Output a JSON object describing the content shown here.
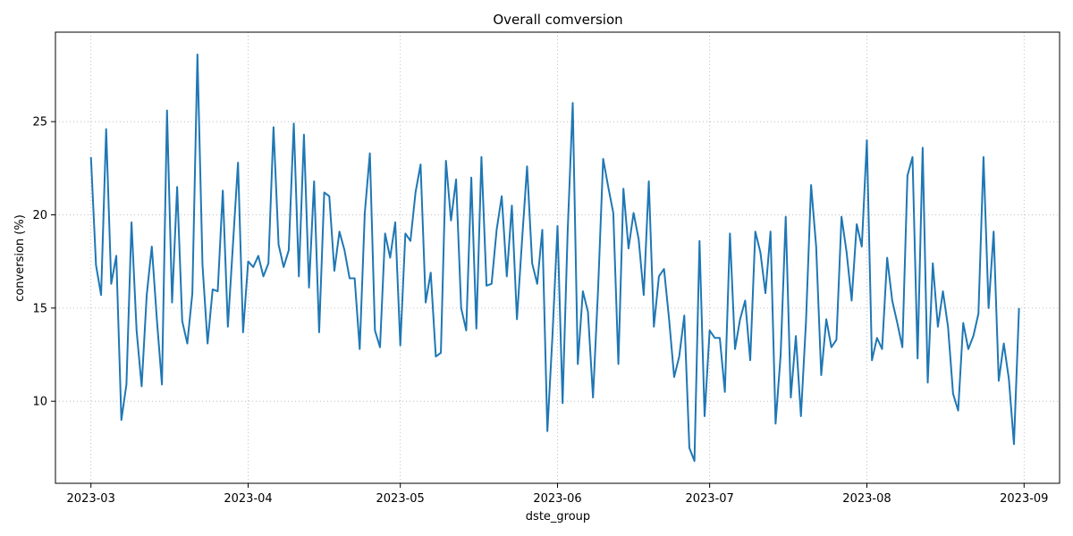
{
  "chart_data": {
    "type": "line",
    "title": "Overall comversion",
    "xlabel": "dste_group",
    "ylabel": "conversion (%)",
    "x_start": "2023-03-01",
    "x_end": "2023-08-31",
    "xlim": [
      "2023-02-22",
      "2023-09-08"
    ],
    "ylim": [
      5.6,
      29.8
    ],
    "xticks": [
      {
        "date": "2023-03-01",
        "label": "2023-03"
      },
      {
        "date": "2023-04-01",
        "label": "2023-04"
      },
      {
        "date": "2023-05-01",
        "label": "2023-05"
      },
      {
        "date": "2023-06-01",
        "label": "2023-06"
      },
      {
        "date": "2023-07-01",
        "label": "2023-07"
      },
      {
        "date": "2023-08-01",
        "label": "2023-08"
      },
      {
        "date": "2023-09-01",
        "label": "2023-09"
      }
    ],
    "yticks": [
      10,
      15,
      20,
      25
    ],
    "grid": true,
    "line_color": "#1f77b4",
    "series": [
      {
        "values": [
          23.1,
          17.3,
          15.7,
          24.6,
          16.3,
          17.8,
          9.0,
          10.9,
          19.6,
          13.8,
          10.8,
          15.7,
          18.3,
          14.4,
          10.9,
          25.6,
          15.3,
          21.5,
          14.3,
          13.1,
          15.8,
          28.6,
          17.3,
          13.1,
          16.0,
          15.9,
          21.3,
          14.0,
          18.4,
          22.8,
          13.7,
          17.5,
          17.2,
          17.8,
          16.7,
          17.4,
          24.7,
          18.4,
          17.2,
          18.1,
          24.9,
          16.7,
          24.3,
          16.1,
          21.8,
          13.7,
          21.2,
          21.0,
          17.0,
          19.1,
          18.1,
          16.6,
          16.6,
          12.8,
          20.1,
          23.3,
          13.8,
          12.9,
          19.0,
          17.7,
          19.6,
          13.0,
          19.0,
          18.6,
          21.2,
          22.7,
          15.3,
          16.9,
          12.4,
          12.6,
          22.9,
          19.7,
          21.9,
          15.0,
          13.8,
          22.0,
          13.9,
          23.1,
          16.2,
          16.3,
          19.2,
          21.0,
          16.7,
          20.5,
          14.4,
          18.6,
          22.6,
          17.4,
          16.3,
          19.2,
          8.4,
          13.5,
          19.4,
          9.9,
          19.1,
          26.0,
          12.0,
          15.9,
          14.8,
          10.2,
          16.0,
          23.0,
          21.5,
          20.1,
          12.0,
          21.4,
          18.2,
          20.1,
          18.7,
          15.7,
          21.8,
          14.0,
          16.7,
          17.1,
          14.4,
          11.3,
          12.4,
          14.6,
          7.5,
          6.8,
          18.6,
          9.2,
          13.8,
          13.4,
          13.4,
          10.5,
          19.0,
          12.8,
          14.4,
          15.4,
          12.2,
          19.1,
          18.0,
          15.8,
          19.1,
          8.8,
          12.5,
          19.9,
          10.2,
          13.5,
          9.2,
          14.3,
          21.6,
          18.3,
          11.4,
          14.4,
          12.9,
          13.3,
          19.9,
          18.0,
          15.4,
          19.5,
          18.3,
          24.0,
          12.2,
          13.4,
          12.8,
          17.7,
          15.4,
          14.2,
          12.9,
          22.1,
          23.1,
          12.3,
          23.6,
          11.0,
          17.4,
          14.0,
          15.9,
          14.0,
          10.4,
          9.5,
          14.2,
          12.8,
          13.5,
          14.7,
          23.1,
          15.0,
          19.1,
          11.1,
          13.1,
          11.2,
          7.7,
          15.0
        ]
      }
    ]
  }
}
